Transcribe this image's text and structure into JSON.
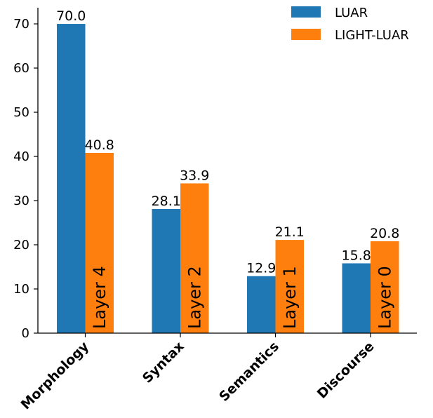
{
  "chart_data": {
    "type": "bar",
    "categories": [
      "Morphology",
      "Syntax",
      "Semantics",
      "Discourse"
    ],
    "series": [
      {
        "name": "LUAR",
        "values": [
          70.0,
          28.1,
          12.9,
          15.8
        ],
        "color": "#1f77b4"
      },
      {
        "name": "LIGHT-LUAR",
        "values": [
          40.8,
          33.9,
          21.1,
          20.8
        ],
        "color": "#ff7f0e"
      }
    ],
    "value_labels": [
      [
        "70.0",
        "28.1",
        "12.9",
        "15.8"
      ],
      [
        "40.8",
        "33.9",
        "21.1",
        "20.8"
      ]
    ],
    "bar_annotations": [
      "Layer 4",
      "Layer 2",
      "Layer 1",
      "Layer 0"
    ],
    "yticks": [
      0,
      10,
      20,
      30,
      40,
      50,
      60,
      70
    ],
    "ylim": [
      0,
      73.5
    ],
    "title": "",
    "xlabel": "",
    "ylabel": "",
    "grid": false,
    "legend_position": "top-right"
  }
}
